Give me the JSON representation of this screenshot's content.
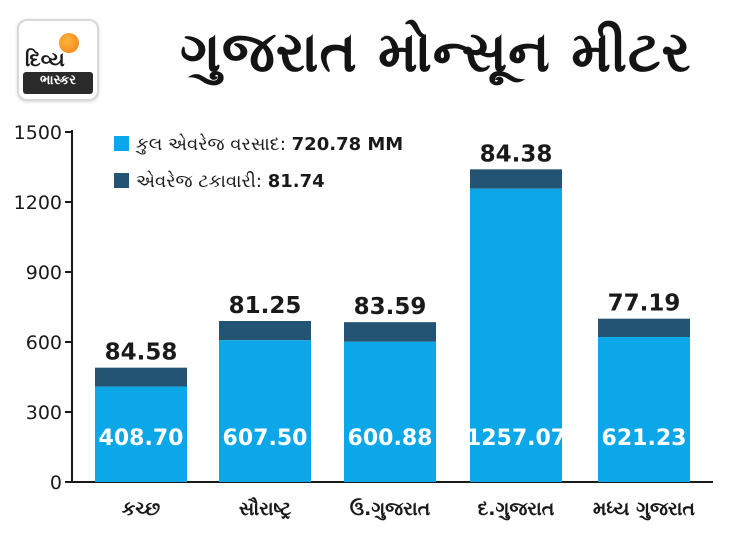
{
  "logo": {
    "line1": "દિવ્ય",
    "line2": "ભાસ્કર"
  },
  "colors": {
    "primary": "#0ca7e8",
    "secondary": "#245474",
    "axis": "#1a1a1a"
  },
  "legend": [
    {
      "label": "કુલ એવરેજ વરસાદ:",
      "value": "720.78 MM"
    },
    {
      "label": "એવરેજ ટકાવારી:",
      "value": "81.74"
    }
  ],
  "chart_data": {
    "type": "bar",
    "title": "ગુજરાત મોન્સૂન મીટર",
    "categories": [
      "કચ્છ",
      "સૌરાષ્ટ્ર",
      "ઉ.ગુજરાત",
      "દ.ગુજરાત",
      "મધ્ય ગુજરાત"
    ],
    "series": [
      {
        "name": "કુલ એવરેજ વરસાદ",
        "values": [
          408.7,
          607.5,
          600.88,
          1257.07,
          621.23
        ],
        "labels": [
          "408.70",
          "607.50",
          "600.88",
          "1257.07",
          "621.23"
        ]
      },
      {
        "name": "એવરેજ ટકાવારી",
        "values": [
          84.58,
          81.25,
          83.59,
          84.38,
          77.19
        ],
        "labels": [
          "84.58",
          "81.25",
          "83.59",
          "84.38",
          "77.19"
        ]
      }
    ],
    "totals": [
      490,
      690,
      685,
      1340,
      700
    ],
    "yticks": [
      "0",
      "300",
      "600",
      "900",
      "1200",
      "1500"
    ],
    "ylim": [
      0,
      1500
    ],
    "xlabel": "",
    "ylabel": "",
    "grid": false
  }
}
